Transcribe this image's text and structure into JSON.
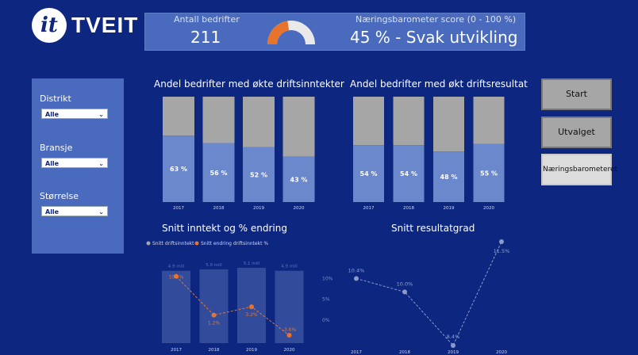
{
  "logo": {
    "mark": "it",
    "brand": "TVEIT"
  },
  "kpi": {
    "count_label": "Antall bedrifter",
    "count_value": "211",
    "score_label": "Næringsbarometer score (0 - 100 %)",
    "score_value": "45 % - Svak utvikling",
    "gauge_fraction": 0.45,
    "gauge_color": "#e8742c"
  },
  "filters": [
    {
      "label": "Distrikt",
      "value": "Alle"
    },
    {
      "label": "Bransje",
      "value": "Alle"
    },
    {
      "label": "Størrelse",
      "value": "Alle"
    }
  ],
  "nav": {
    "start": "Start",
    "utvalget": "Utvalget",
    "naeringsbarometeret": "Næringsbarometeret"
  },
  "titles": {
    "chart1": "Andel bedrifter med økte driftsinntekter",
    "chart2": "Andel bedrifter med økt driftsresultat",
    "chart3": "Snitt inntekt og % endring",
    "chart4": "Snitt resultatgrad"
  },
  "legend3": {
    "series1": "Snitt driftsinntekt",
    "series2": "Snitt endring driftsinntekt %"
  },
  "colors": {
    "bar_top": "#a6a6a6",
    "bar_bottom": "#6b88cc",
    "bar_income": "#3a54a0",
    "line_orange": "#e8742c",
    "line_grey": "#8a9acb"
  },
  "chart_data": [
    {
      "type": "bar",
      "title": "Andel bedrifter med økte driftsinntekter",
      "categories": [
        "2017",
        "2018",
        "2019",
        "2020"
      ],
      "values": [
        63,
        56,
        52,
        43
      ],
      "labels": [
        "63 %",
        "56 %",
        "52 %",
        "43 %"
      ],
      "ylim": [
        0,
        100
      ]
    },
    {
      "type": "bar",
      "title": "Andel bedrifter med økt driftsresultat",
      "categories": [
        "2017",
        "2018",
        "2019",
        "2020"
      ],
      "values": [
        54,
        54,
        48,
        55
      ],
      "labels": [
        "54 %",
        "54 %",
        "48 %",
        "55 %"
      ],
      "ylim": [
        0,
        100
      ]
    },
    {
      "type": "bar",
      "title": "Snitt inntekt og % endring",
      "categories": [
        "2017",
        "2018",
        "2019",
        "2020"
      ],
      "series": [
        {
          "name": "Snitt driftsinntekt",
          "values": [
            4.9,
            5.0,
            5.1,
            4.9
          ],
          "labels": [
            "4.9 mill",
            "5.0 mill",
            "5.1 mill",
            "4.9 mill"
          ]
        },
        {
          "name": "Snitt endring driftsinntekt %",
          "values": [
            10.5,
            1.2,
            3.2,
            -3.6
          ],
          "labels": [
            "10.5%",
            "1.2%",
            "3.2%",
            "-3.6%"
          ]
        }
      ],
      "y2_ticks": [
        "10%",
        "5%",
        "0%"
      ],
      "y2lim": [
        -5,
        10
      ]
    },
    {
      "type": "line",
      "title": "Snitt resultatgrad",
      "categories": [
        "2017",
        "2018",
        "2019",
        "2020"
      ],
      "values": [
        10.4,
        10.0,
        8.4,
        11.5
      ],
      "labels": [
        "10.4%",
        "10.0%",
        "8.4%",
        "11.5%"
      ]
    }
  ]
}
